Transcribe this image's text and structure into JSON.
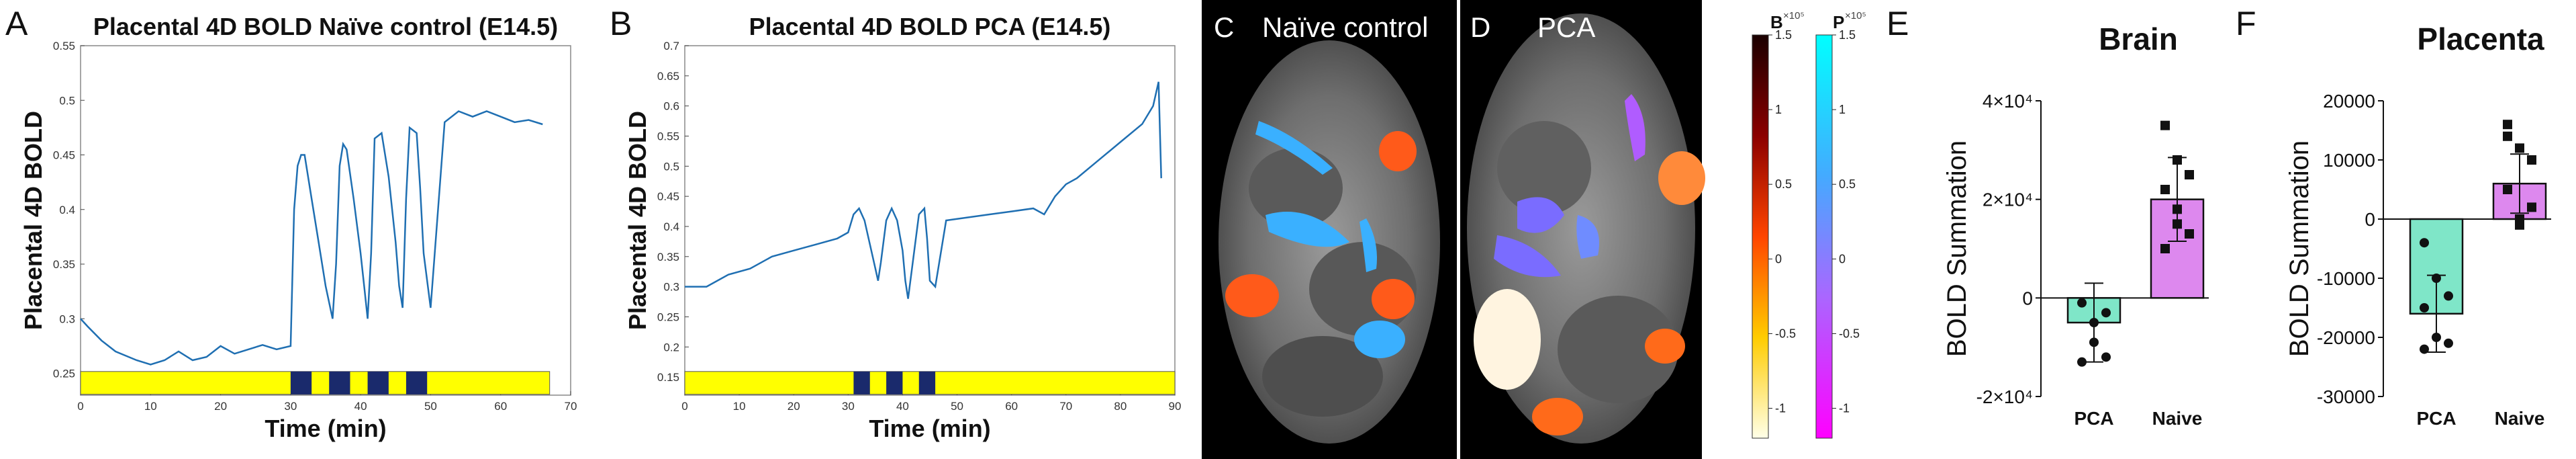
{
  "chart_data": [
    {
      "type": "line",
      "panel": "A",
      "title": "Placental 4D BOLD Naïve control (E14.5)",
      "xlabel": "Time (min)",
      "ylabel": "Placental 4D BOLD",
      "xlim": [
        0,
        70
      ],
      "ylim": [
        0.23,
        0.55
      ],
      "xticks": [
        0,
        10,
        20,
        30,
        40,
        50,
        60,
        70
      ],
      "yticks": [
        0.25,
        0.3,
        0.35,
        0.4,
        0.45,
        0.5,
        0.55
      ],
      "ytick_labels": [
        "0.25",
        "0.3",
        "0.35",
        "0.4",
        "0.45",
        "0.5",
        "0.55"
      ],
      "series": [
        {
          "name": "BOLD",
          "x": [
            0,
            1,
            3,
            5,
            8,
            10,
            12,
            14,
            16,
            18,
            20,
            22,
            24,
            26,
            28,
            30,
            30.5,
            31,
            31.5,
            32,
            33,
            34,
            35,
            36,
            36.5,
            37,
            37.5,
            38,
            39,
            40,
            40.5,
            41,
            41.5,
            42,
            43,
            44,
            45,
            45.5,
            46,
            46.5,
            47,
            48,
            48.5,
            49,
            50,
            52,
            54,
            56,
            58,
            60,
            62,
            64,
            66
          ],
          "y": [
            0.3,
            0.293,
            0.28,
            0.27,
            0.262,
            0.258,
            0.262,
            0.27,
            0.262,
            0.265,
            0.275,
            0.268,
            0.272,
            0.276,
            0.272,
            0.275,
            0.4,
            0.44,
            0.45,
            0.45,
            0.41,
            0.37,
            0.33,
            0.3,
            0.35,
            0.44,
            0.46,
            0.455,
            0.41,
            0.36,
            0.33,
            0.3,
            0.36,
            0.465,
            0.47,
            0.43,
            0.37,
            0.33,
            0.31,
            0.41,
            0.475,
            0.47,
            0.42,
            0.36,
            0.31,
            0.48,
            0.49,
            0.485,
            0.49,
            0.485,
            0.48,
            0.482,
            0.478
          ]
        }
      ],
      "stimulus_blocks": [
        [
          30,
          33
        ],
        [
          35.5,
          38.5
        ],
        [
          41,
          44
        ],
        [
          46.5,
          49.5
        ]
      ],
      "stimulus_extent": [
        0,
        67
      ],
      "colors": {
        "line": "#1f6fb2",
        "bar": "#ffff00",
        "block": "#1a2a6c"
      }
    },
    {
      "type": "line",
      "panel": "B",
      "title": "Placental 4D BOLD PCA (E14.5)",
      "xlabel": "Time (min)",
      "ylabel": "Placental 4D BOLD",
      "xlim": [
        0,
        90
      ],
      "ylim": [
        0.12,
        0.7
      ],
      "xticks": [
        0,
        10,
        20,
        30,
        40,
        50,
        60,
        70,
        80,
        90
      ],
      "yticks": [
        0.15,
        0.2,
        0.25,
        0.3,
        0.35,
        0.4,
        0.45,
        0.5,
        0.55,
        0.6,
        0.65,
        0.7
      ],
      "ytick_labels": [
        "0.15",
        "0.2",
        "0.25",
        "0.3",
        "0.35",
        "0.4",
        "0.45",
        "0.5",
        "0.55",
        "0.6",
        "0.65",
        "0.7"
      ],
      "series": [
        {
          "name": "BOLD",
          "x": [
            0,
            4,
            8,
            12,
            16,
            20,
            24,
            28,
            30,
            31,
            32,
            33,
            34,
            35,
            35.5,
            36,
            37,
            38,
            39,
            40,
            40.5,
            41,
            42,
            43,
            44,
            44.5,
            45,
            46,
            48,
            52,
            56,
            60,
            64,
            66,
            68,
            70,
            72,
            76,
            80,
            84,
            86,
            87,
            87.5
          ],
          "y": [
            0.3,
            0.3,
            0.32,
            0.33,
            0.35,
            0.36,
            0.37,
            0.38,
            0.39,
            0.42,
            0.43,
            0.41,
            0.37,
            0.33,
            0.31,
            0.34,
            0.41,
            0.43,
            0.41,
            0.36,
            0.31,
            0.28,
            0.35,
            0.42,
            0.43,
            0.38,
            0.31,
            0.3,
            0.41,
            0.415,
            0.42,
            0.425,
            0.43,
            0.42,
            0.45,
            0.47,
            0.48,
            0.51,
            0.54,
            0.57,
            0.6,
            0.64,
            0.48
          ]
        }
      ],
      "stimulus_blocks": [
        [
          31,
          34
        ],
        [
          37,
          40
        ],
        [
          43,
          46
        ]
      ],
      "stimulus_extent": [
        0,
        90
      ],
      "colors": {
        "line": "#1f6fb2",
        "bar": "#ffff00",
        "block": "#1a2a6c"
      }
    },
    {
      "type": "bar",
      "panel": "E",
      "title": "Brain",
      "xlabel": "",
      "ylabel": "BOLD Summation",
      "categories": [
        "PCA",
        "Naive"
      ],
      "values": [
        -5000,
        20000
      ],
      "errors": [
        8000,
        8500
      ],
      "points": [
        [
          -1000,
          -9000,
          -12000,
          -13000,
          -5000,
          -3000
        ],
        [
          35000,
          28000,
          25000,
          22000,
          18000,
          13000,
          10000,
          15000
        ]
      ],
      "ylim": [
        -20000,
        40000
      ],
      "yticks": [
        -20000,
        0,
        20000,
        40000
      ],
      "ytick_labels": [
        "-2×10⁴",
        "0",
        "2×10⁴",
        "4×10⁴"
      ],
      "colors": [
        "#7fe6c8",
        "#dd88ee"
      ]
    },
    {
      "type": "bar",
      "panel": "F",
      "title": "Placenta",
      "xlabel": "",
      "ylabel": "BOLD Summation",
      "categories": [
        "PCA",
        "Naive"
      ],
      "values": [
        -16000,
        6000
      ],
      "errors": [
        6500,
        5000
      ],
      "points": [
        [
          -4000,
          -10000,
          -13000,
          -15000,
          -20000,
          -21000,
          -22000
        ],
        [
          16000,
          12000,
          10000,
          5000,
          -1000,
          2000,
          14000,
          0
        ]
      ],
      "ylim": [
        -30000,
        20000
      ],
      "yticks": [
        -30000,
        -20000,
        -10000,
        0,
        10000,
        20000
      ],
      "ytick_labels": [
        "-30000",
        "-20000",
        "-10000",
        "0",
        "10000",
        "20000"
      ],
      "colors": [
        "#7fe6c8",
        "#dd88ee"
      ]
    }
  ],
  "panels": {
    "a": "A",
    "b": "B",
    "c": "C",
    "d": "D",
    "e": "E",
    "f": "F"
  },
  "mri": {
    "c_title": "Naïve control",
    "d_title": "PCA"
  },
  "colorbars": {
    "b_title": "B",
    "p_title": "P",
    "exponent": "×10⁵",
    "b_ticks": [
      "1.5",
      "1",
      "0.5",
      "0",
      "-0.5",
      "-1"
    ],
    "p_ticks": [
      "1.5",
      "1",
      "0.5",
      "0",
      "-0.5",
      "-1"
    ]
  }
}
